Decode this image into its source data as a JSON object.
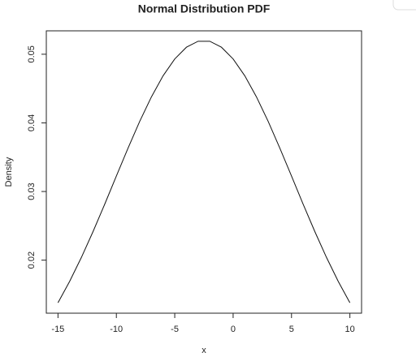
{
  "chart_data": {
    "type": "line",
    "title": "Normal Distribution PDF",
    "x_label": "x",
    "y_label": "Density",
    "x": [
      -15,
      -14,
      -13,
      -12,
      -11,
      -10,
      -9,
      -8,
      -7,
      -6,
      -5,
      -4,
      -3,
      -2,
      -1,
      0,
      1,
      2,
      3,
      4,
      5,
      6,
      7,
      8,
      9,
      10
    ],
    "series": [
      {
        "color": "#111111",
        "values": [
          0.01379,
          0.01691,
          0.02038,
          0.02415,
          0.02814,
          0.03225,
          0.03632,
          0.04022,
          0.04378,
          0.04686,
          0.04931,
          0.05102,
          0.05189,
          0.05189,
          0.05102,
          0.04931,
          0.04686,
          0.04378,
          0.04022,
          0.03632,
          0.03225,
          0.02814,
          0.02415,
          0.02038,
          0.01691,
          0.01379
        ]
      }
    ],
    "xlim": [
      -16,
      11
    ],
    "ylim": [
      0.01227,
      0.05341
    ],
    "xticks": [
      -15,
      -10,
      -5,
      0,
      5,
      10
    ],
    "yticks": [
      0.02,
      0.03,
      0.04,
      0.05
    ]
  }
}
